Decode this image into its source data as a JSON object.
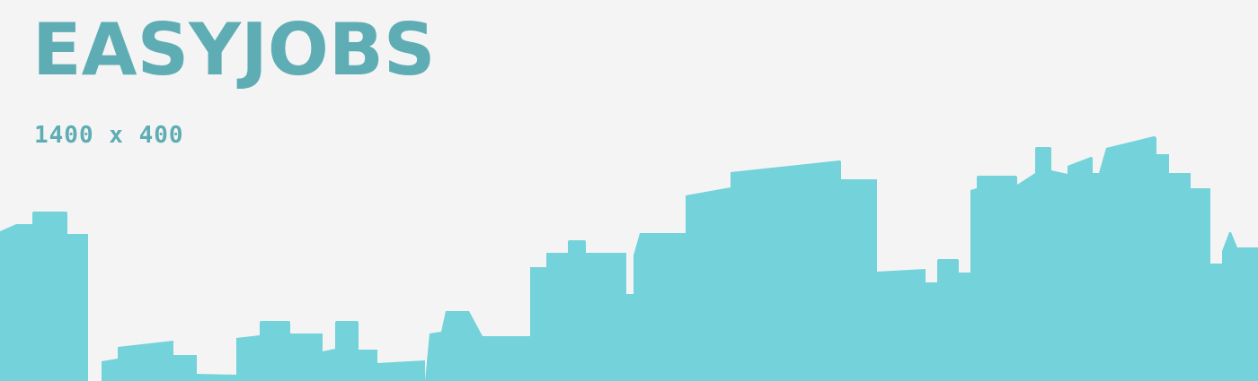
{
  "brand": {
    "name": "EASYJOBS",
    "color": "#5fadb4"
  },
  "placeholder": {
    "dimensions_label": "1400 x 400"
  },
  "skyline": {
    "icon": "city-skyline-illustration",
    "color": "#73d2da"
  },
  "background": {
    "color": "#f4f4f4"
  }
}
